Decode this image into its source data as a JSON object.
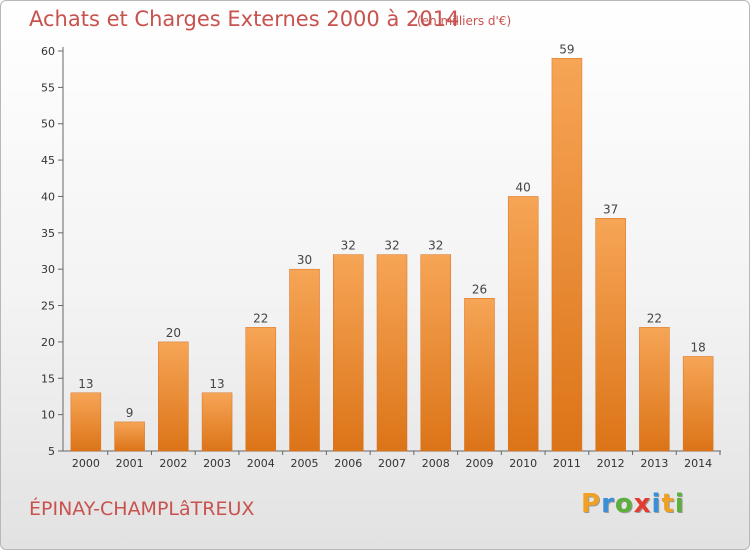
{
  "title": "Achats et Charges Externes 2000 à 2014",
  "subtitle": "(en milliers d'€)",
  "city": "ÉPINAY-CHAMPLâTREUX",
  "logo": {
    "letters": [
      "P",
      "r",
      "o",
      "x",
      "i",
      "t",
      "i"
    ],
    "colors": [
      "#f0a023",
      "#3b8fd9",
      "#5ab03a",
      "#e33b2f",
      "#3b8fd9",
      "#f0a023",
      "#5ab03a"
    ]
  },
  "colors": {
    "bar": "#f39a45",
    "bar_dark": "#e07a1e",
    "title": "#c8524e"
  },
  "chart_data": {
    "type": "bar",
    "categories": [
      "2000",
      "2001",
      "2002",
      "2003",
      "2004",
      "2005",
      "2006",
      "2007",
      "2008",
      "2009",
      "2010",
      "2011",
      "2012",
      "2013",
      "2014"
    ],
    "values": [
      13,
      9,
      20,
      13,
      22,
      30,
      32,
      32,
      32,
      26,
      40,
      59,
      37,
      22,
      18
    ],
    "title": "Achats et Charges Externes 2000 à 2014",
    "ylim": [
      5,
      60
    ],
    "yticks": [
      5,
      10,
      15,
      20,
      25,
      30,
      35,
      40,
      45,
      50,
      55,
      60
    ],
    "grid": false,
    "legend": "none"
  }
}
